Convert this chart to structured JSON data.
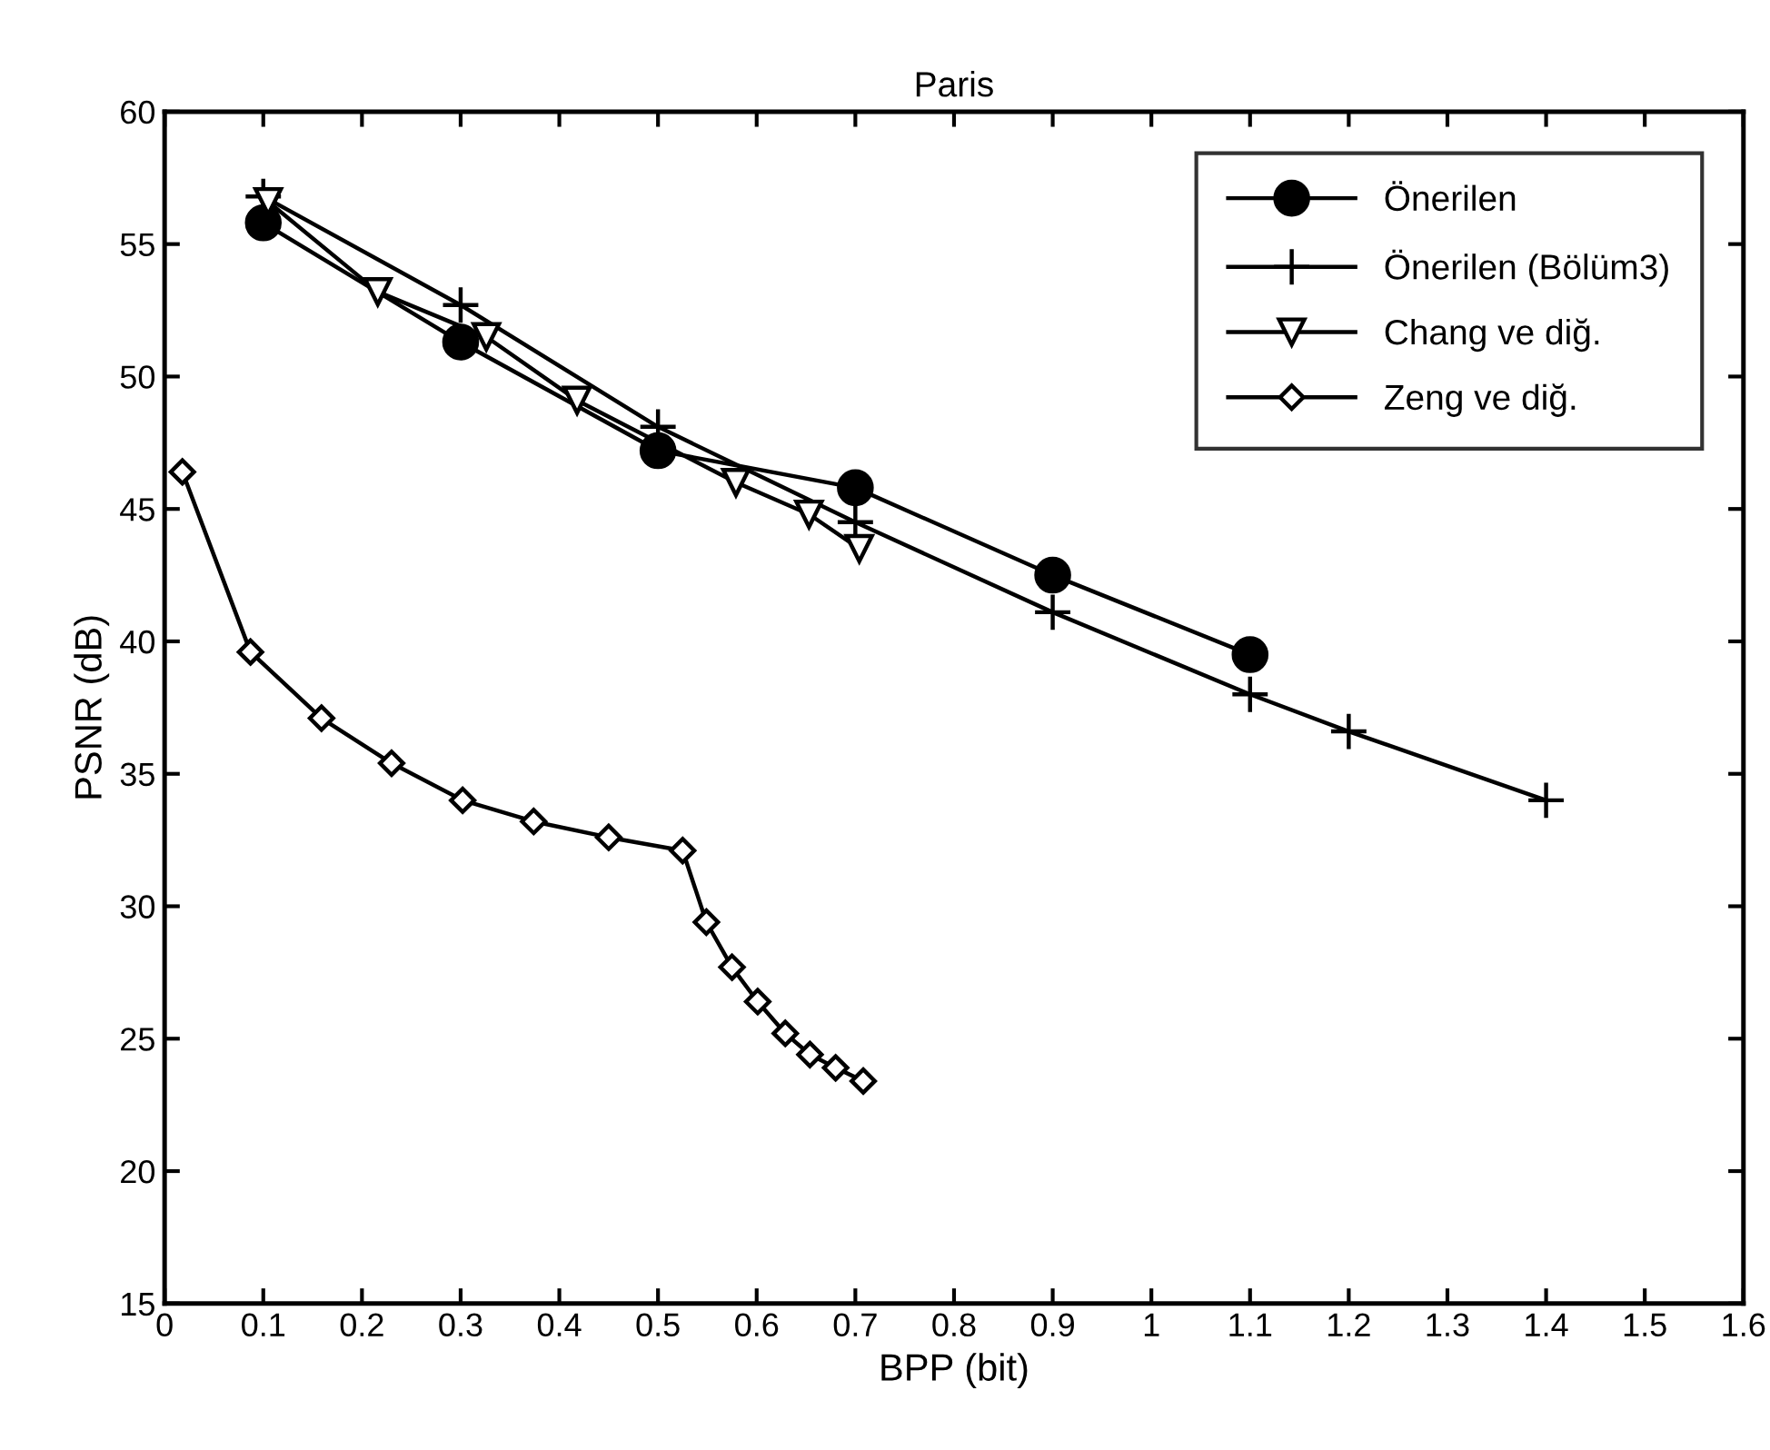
{
  "chart_data": {
    "type": "line",
    "title": "Paris",
    "xlabel": "BPP (bit)",
    "ylabel": "PSNR (dB)",
    "xlim": [
      0,
      1.6
    ],
    "xticks": [
      0,
      0.1,
      0.2,
      0.3,
      0.4,
      0.5,
      0.6,
      0.7,
      0.8,
      0.9,
      1,
      1.1,
      1.2,
      1.3,
      1.4,
      1.5,
      1.6
    ],
    "ylim": [
      15,
      60
    ],
    "yticks": [
      15,
      20,
      25,
      30,
      35,
      40,
      45,
      50,
      55,
      60
    ],
    "grid": false,
    "legend": "top right",
    "series": [
      {
        "name": "Önerilen",
        "marker": "circle",
        "color": "#000000",
        "x": [
          0.1,
          0.3,
          0.5,
          0.7,
          0.9,
          1.1
        ],
        "values": [
          55.8,
          51.3,
          47.2,
          45.8,
          42.5,
          39.5
        ]
      },
      {
        "name": "Önerilen (Bölüm3)",
        "marker": "cross",
        "color": "#000000",
        "x": [
          0.1,
          0.3,
          0.5,
          0.7,
          0.9,
          1.1,
          1.2,
          1.4
        ],
        "values": [
          56.8,
          52.7,
          48.1,
          44.5,
          41.1,
          38.0,
          36.6,
          34.0
        ]
      },
      {
        "name": "Chang ve diğ.",
        "marker": "triangle",
        "color": "#000000",
        "x": [
          0.105,
          0.216,
          0.326,
          0.418,
          0.579,
          0.653,
          0.704
        ],
        "values": [
          56.6,
          53.2,
          51.5,
          49.1,
          46.0,
          44.8,
          43.5
        ]
      },
      {
        "name": "Zeng ve diğ.",
        "marker": "diamond",
        "color": "#000000",
        "x": [
          0.018,
          0.087,
          0.159,
          0.23,
          0.302,
          0.374,
          0.45,
          0.525,
          0.549,
          0.575,
          0.601,
          0.629,
          0.654,
          0.68,
          0.708
        ],
        "values": [
          46.4,
          39.6,
          37.1,
          35.4,
          34.0,
          33.2,
          32.6,
          32.1,
          29.4,
          27.7,
          26.4,
          25.2,
          24.4,
          23.9,
          23.4
        ]
      }
    ]
  }
}
